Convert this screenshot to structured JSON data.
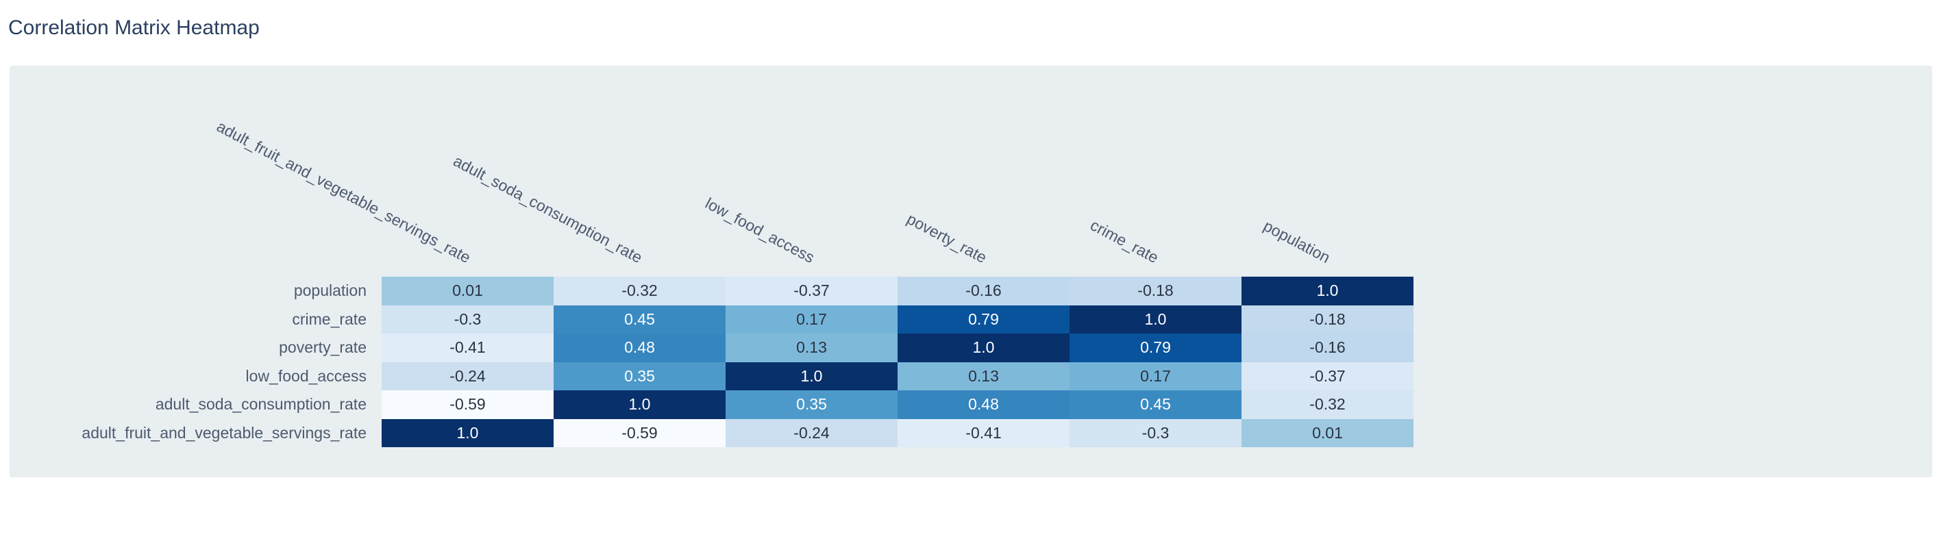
{
  "page": {
    "title": "Correlation Matrix Heatmap"
  },
  "chart_data": {
    "type": "heatmap",
    "title": "Correlation Matrix Heatmap",
    "x_labels": [
      "adult_fruit_and_vegetable_servings_rate",
      "adult_soda_consumption_rate",
      "low_food_access",
      "poverty_rate",
      "crime_rate",
      "population"
    ],
    "y_labels": [
      "population",
      "crime_rate",
      "poverty_rate",
      "low_food_access",
      "adult_soda_consumption_rate",
      "adult_fruit_and_vegetable_servings_rate"
    ],
    "values": [
      [
        0.01,
        -0.32,
        -0.37,
        -0.16,
        -0.18,
        1.0
      ],
      [
        -0.3,
        0.45,
        0.17,
        0.79,
        1.0,
        -0.18
      ],
      [
        -0.41,
        0.48,
        0.13,
        1.0,
        0.79,
        -0.16
      ],
      [
        -0.24,
        0.35,
        1.0,
        0.13,
        0.17,
        -0.37
      ],
      [
        -0.59,
        1.0,
        0.35,
        0.48,
        0.45,
        -0.32
      ],
      [
        1.0,
        -0.59,
        -0.24,
        -0.41,
        -0.3,
        0.01
      ]
    ],
    "text": [
      [
        "0.01",
        "-0.32",
        "-0.37",
        "-0.16",
        "-0.18",
        "1.0"
      ],
      [
        "-0.3",
        "0.45",
        "0.17",
        "0.79",
        "1.0",
        "-0.18"
      ],
      [
        "-0.41",
        "0.48",
        "0.13",
        "1.0",
        "0.79",
        "-0.16"
      ],
      [
        "-0.24",
        "0.35",
        "1.0",
        "0.13",
        "0.17",
        "-0.37"
      ],
      [
        "-0.59",
        "1.0",
        "0.35",
        "0.48",
        "0.45",
        "-0.32"
      ],
      [
        "1.0",
        "-0.59",
        "-0.24",
        "-0.41",
        "-0.3",
        "0.01"
      ]
    ],
    "zmin": -0.59,
    "zmax": 1.0,
    "colorscale_name": "Blues",
    "colorscale_stops": [
      [
        0,
        "#f7fbff"
      ],
      [
        0.125,
        "#deebf7"
      ],
      [
        0.25,
        "#c6dbef"
      ],
      [
        0.375,
        "#9ecae1"
      ],
      [
        0.5,
        "#6baed6"
      ],
      [
        0.625,
        "#4292c6"
      ],
      [
        0.75,
        "#2171b5"
      ],
      [
        0.875,
        "#08519c"
      ],
      [
        1,
        "#08306b"
      ]
    ],
    "white_text_threshold": 0.55,
    "xlabel": "",
    "ylabel": "",
    "legend": "none",
    "grid": "off"
  },
  "colors": {
    "panel_bg": "#e9eef1",
    "title_text": "#2a3f5f",
    "tick_text": "#4d5a6d",
    "cell_text_dark": "#2b3342",
    "cell_text_light": "#ffffff"
  }
}
